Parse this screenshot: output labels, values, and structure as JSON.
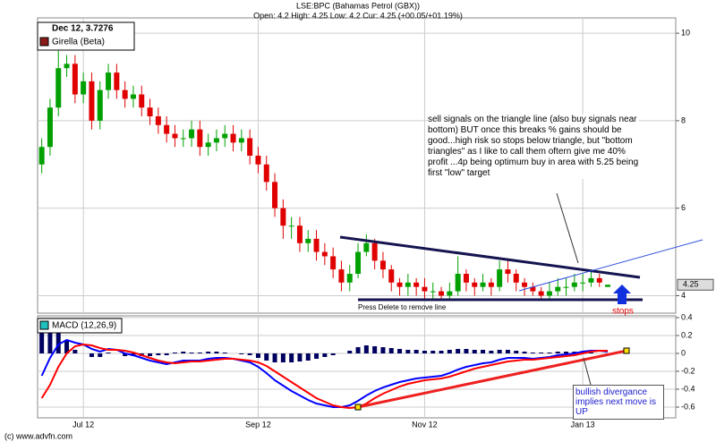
{
  "chart_data": [
    {
      "type": "candlestick",
      "title": "LSE:BPC (Bahamas Petrol (GBX))",
      "subtitle": "Open: 4.2 High: 4.25 Low: 4.2 Cur: 4.25 (+00.05/+01.19%)",
      "cursor_label": "Dec 12, 3.7276",
      "legend": [
        {
          "name": "Girella (Beta)",
          "color": "#8b1a1a"
        }
      ],
      "up_color": "#00a000",
      "down_color": "#e00000",
      "categories": [
        null,
        null,
        null,
        null,
        null,
        "Jul 12",
        null,
        null,
        null,
        null,
        null,
        null,
        null,
        null,
        null,
        null,
        null,
        null,
        null,
        null,
        null,
        null,
        null,
        null,
        null,
        null,
        "Sep 12",
        null,
        null,
        null,
        null,
        null,
        null,
        null,
        null,
        null,
        null,
        null,
        null,
        null,
        null,
        null,
        null,
        null,
        null,
        null,
        "Nov 12",
        null,
        null,
        null,
        null,
        null,
        null,
        null,
        null,
        null,
        null,
        null,
        null,
        null,
        null,
        null,
        null,
        null,
        null,
        "Jan 13",
        null,
        null,
        null
      ],
      "open": [
        7.0,
        7.4,
        8.3,
        9.2,
        9.3,
        8.6,
        8.9,
        8.0,
        8.7,
        9.1,
        8.7,
        8.5,
        8.6,
        8.3,
        8.1,
        7.9,
        7.7,
        7.6,
        7.6,
        7.8,
        7.4,
        7.5,
        7.6,
        7.7,
        7.5,
        7.6,
        7.2,
        7.0,
        6.6,
        6.0,
        5.6,
        5.6,
        5.2,
        5.3,
        5.0,
        4.9,
        4.6,
        4.3,
        4.5,
        5.0,
        5.2,
        4.8,
        4.6,
        4.3,
        4.2,
        4.3,
        4.2,
        4.1,
        4.1,
        4.0,
        4.1,
        4.5,
        4.3,
        4.2,
        4.3,
        4.2,
        4.6,
        4.5,
        4.3,
        4.2,
        4.1,
        4.0,
        4.1,
        4.2,
        4.2,
        4.3,
        4.3,
        4.4,
        4.2
      ],
      "high": [
        7.6,
        8.5,
        9.6,
        9.5,
        9.5,
        9.1,
        9.1,
        8.9,
        9.3,
        9.3,
        8.9,
        8.8,
        8.8,
        8.5,
        8.3,
        8.1,
        7.9,
        7.8,
        8.0,
        8.0,
        7.7,
        7.8,
        7.9,
        7.9,
        7.8,
        7.8,
        7.4,
        7.2,
        6.8,
        6.2,
        5.8,
        5.8,
        5.5,
        5.5,
        5.2,
        5.1,
        4.8,
        4.7,
        5.2,
        5.4,
        5.3,
        5.0,
        4.7,
        4.4,
        4.5,
        4.4,
        4.4,
        4.3,
        4.2,
        4.3,
        4.9,
        4.6,
        4.4,
        4.5,
        4.4,
        4.8,
        4.8,
        4.6,
        4.4,
        4.3,
        4.2,
        4.3,
        4.4,
        4.4,
        4.5,
        4.5,
        4.6,
        4.5,
        4.25
      ],
      "low": [
        6.8,
        7.2,
        8.1,
        9.0,
        8.4,
        8.4,
        7.8,
        7.8,
        8.5,
        8.5,
        8.3,
        8.3,
        8.1,
        7.9,
        7.7,
        7.5,
        7.4,
        7.4,
        7.4,
        7.2,
        7.2,
        7.3,
        7.4,
        7.3,
        7.3,
        7.0,
        6.8,
        6.4,
        5.8,
        5.3,
        5.3,
        5.0,
        5.0,
        4.8,
        4.7,
        4.4,
        4.1,
        4.1,
        4.4,
        4.9,
        4.6,
        4.4,
        4.1,
        4.0,
        4.0,
        4.0,
        3.9,
        3.9,
        3.9,
        3.9,
        4.0,
        4.1,
        4.0,
        4.1,
        4.0,
        4.1,
        4.3,
        4.1,
        4.0,
        4.0,
        3.9,
        3.9,
        4.0,
        4.0,
        4.1,
        4.1,
        4.2,
        4.2,
        4.2
      ],
      "close": [
        7.4,
        8.3,
        9.2,
        9.3,
        8.6,
        8.9,
        8.0,
        8.7,
        9.1,
        8.7,
        8.5,
        8.6,
        8.3,
        8.1,
        7.9,
        7.7,
        7.6,
        7.6,
        7.8,
        7.4,
        7.5,
        7.6,
        7.7,
        7.5,
        7.6,
        7.2,
        7.0,
        6.6,
        6.0,
        5.6,
        5.6,
        5.2,
        5.3,
        5.0,
        4.9,
        4.6,
        4.3,
        4.5,
        5.0,
        5.2,
        4.8,
        4.6,
        4.3,
        4.2,
        4.3,
        4.2,
        4.1,
        4.1,
        4.0,
        4.1,
        4.5,
        4.3,
        4.2,
        4.3,
        4.2,
        4.6,
        4.5,
        4.3,
        4.2,
        4.1,
        4.0,
        4.1,
        4.2,
        4.2,
        4.3,
        4.3,
        4.4,
        4.3,
        4.25
      ],
      "last_value": 4.25,
      "ylim": [
        3.6,
        10.35
      ],
      "yticks": [
        10,
        8,
        6,
        4
      ],
      "grid": true,
      "annotations": [
        "sell signals on the triangle line (also buy signals near bottom)  BUT once this breaks % gains should be good...high risk so stops below triangle, but \"bottom triangles\" as I like to call them oftern give me 40% profit ...4p being optimum buy in area with 5.25 being first \"low\" target",
        "Press Delete to remove line",
        "stops"
      ]
    },
    {
      "type": "macd",
      "title": "MACD (12,26,9)",
      "legend_color": "#20c0c0",
      "series": [
        {
          "color": "#0000ff",
          "values": [
            -0.25,
            -0.05,
            0.1,
            0.15,
            0.12,
            0.1,
            0.05,
            0.02,
            0.05,
            0.04,
            0.0,
            -0.02,
            -0.05,
            -0.08,
            -0.1,
            -0.12,
            -0.1,
            -0.08,
            -0.08,
            -0.08,
            -0.06,
            -0.05,
            -0.05,
            -0.06,
            -0.08,
            -0.1,
            -0.15,
            -0.22,
            -0.3,
            -0.36,
            -0.42,
            -0.47,
            -0.52,
            -0.56,
            -0.58,
            -0.6,
            -0.6,
            -0.58,
            -0.53,
            -0.47,
            -0.42,
            -0.38,
            -0.35,
            -0.32,
            -0.3,
            -0.28,
            -0.27,
            -0.26,
            -0.25,
            -0.22,
            -0.18,
            -0.15,
            -0.13,
            -0.11,
            -0.1,
            -0.07,
            -0.05,
            -0.05,
            -0.05,
            -0.06,
            -0.05,
            -0.04,
            -0.02,
            -0.01,
            0.0,
            0.02,
            0.03,
            0.03,
            0.02
          ]
        },
        {
          "color": "#ff0000",
          "values": [
            -0.5,
            -0.35,
            -0.15,
            0.0,
            0.08,
            0.1,
            0.09,
            0.06,
            0.04,
            0.04,
            0.03,
            0.01,
            -0.02,
            -0.05,
            -0.08,
            -0.1,
            -0.11,
            -0.1,
            -0.09,
            -0.09,
            -0.08,
            -0.07,
            -0.06,
            -0.06,
            -0.07,
            -0.08,
            -0.1,
            -0.14,
            -0.2,
            -0.26,
            -0.32,
            -0.38,
            -0.44,
            -0.5,
            -0.54,
            -0.58,
            -0.6,
            -0.61,
            -0.6,
            -0.56,
            -0.5,
            -0.45,
            -0.41,
            -0.37,
            -0.34,
            -0.32,
            -0.3,
            -0.29,
            -0.28,
            -0.26,
            -0.23,
            -0.2,
            -0.17,
            -0.15,
            -0.13,
            -0.11,
            -0.09,
            -0.08,
            -0.07,
            -0.07,
            -0.06,
            -0.05,
            -0.04,
            -0.03,
            -0.02,
            0.0,
            0.02,
            0.03,
            0.03
          ]
        }
      ],
      "histogram": {
        "color": "#000060",
        "values": [
          0.25,
          0.3,
          0.25,
          0.15,
          0.04,
          0.0,
          -0.04,
          -0.04,
          0.01,
          0.0,
          -0.03,
          -0.03,
          -0.03,
          -0.03,
          -0.02,
          -0.02,
          0.01,
          0.02,
          0.01,
          0.01,
          0.02,
          0.02,
          0.01,
          0.0,
          -0.01,
          -0.02,
          -0.05,
          -0.08,
          -0.1,
          -0.1,
          -0.1,
          -0.09,
          -0.08,
          -0.06,
          -0.04,
          -0.02,
          0.0,
          0.03,
          0.07,
          0.09,
          0.08,
          0.07,
          0.06,
          0.05,
          0.04,
          0.04,
          0.03,
          0.03,
          0.03,
          0.04,
          0.05,
          0.05,
          0.04,
          0.04,
          0.03,
          0.04,
          0.04,
          0.03,
          0.02,
          0.01,
          0.01,
          0.01,
          0.02,
          0.02,
          0.02,
          0.02,
          0.01,
          0.0,
          -0.01
        ]
      },
      "ylim": [
        -0.72,
        0.42
      ],
      "yticks": [
        0.4,
        0.2,
        0,
        -0.2,
        -0.4,
        -0.6
      ],
      "grid": true,
      "annotations": [
        "bullish divergance implies next move is UP"
      ]
    }
  ],
  "footer": "(c) www.advfn.com"
}
